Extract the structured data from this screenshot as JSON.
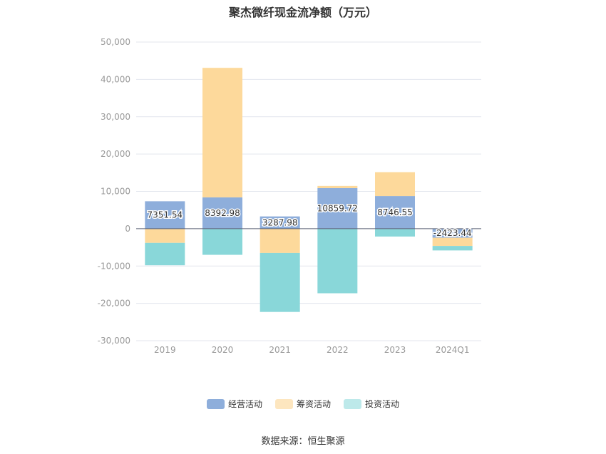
{
  "chart_data": {
    "type": "bar",
    "stacked": true,
    "title": "聚杰微纤现金流净额（万元）",
    "categories": [
      "2019",
      "2020",
      "2021",
      "2022",
      "2023",
      "2024Q1"
    ],
    "ylim": [
      -30000,
      50000
    ],
    "yticks": [
      50000,
      40000,
      30000,
      20000,
      10000,
      0,
      -10000,
      -20000,
      -30000
    ],
    "ytick_labels": [
      "50,000",
      "40,000",
      "30,000",
      "20,000",
      "10,000",
      "0",
      "-10,000",
      "-20,000",
      "-30,000"
    ],
    "grid": true,
    "legend_position": "bottom",
    "series": [
      {
        "name": "经营活动",
        "color": "#8eaedb",
        "values": [
          7351.54,
          8392.98,
          3287.98,
          10859.72,
          8746.55,
          -2423.44
        ]
      },
      {
        "name": "筹资活动",
        "color": "#fdd99b",
        "values": [
          -3800,
          34700,
          -6500,
          600,
          6400,
          -2200
        ]
      },
      {
        "name": "投资活动",
        "color": "#89d7d9",
        "values": [
          -6000,
          -7000,
          -15800,
          -17300,
          -2100,
          -1200
        ]
      }
    ],
    "data_labels": [
      "7351.54",
      "8392.98",
      "3287.98",
      "10859.72",
      "8746.55",
      "-2423.44"
    ]
  },
  "legend": {
    "items": [
      {
        "label": "经营活动",
        "color": "#8eaedb"
      },
      {
        "label": "筹资活动",
        "color": "#fde6bf"
      },
      {
        "label": "投资活动",
        "color": "#bde9ea"
      }
    ]
  },
  "source": "数据来源：恒生聚源"
}
